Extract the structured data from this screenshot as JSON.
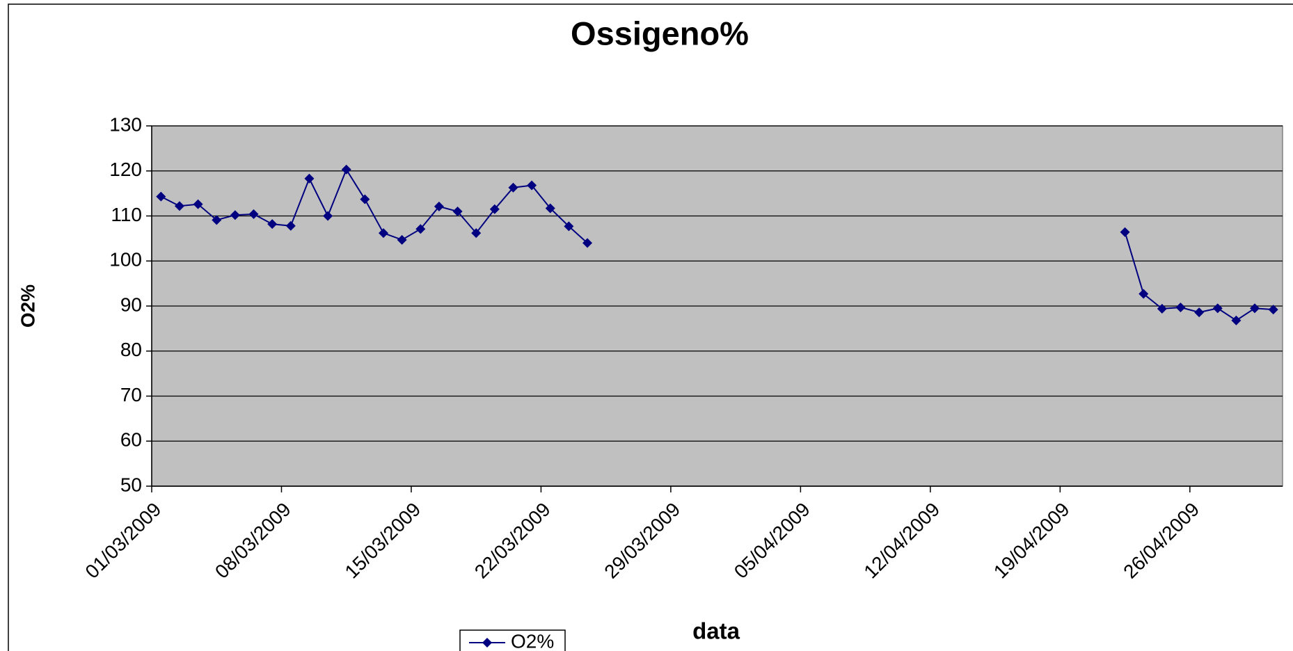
{
  "chart_data": {
    "type": "line",
    "title": "Ossigeno%",
    "x_label": "data",
    "y_label": "O2%",
    "x": [
      "01/03/2009",
      "02/03/2009",
      "03/03/2009",
      "04/03/2009",
      "05/03/2009",
      "06/03/2009",
      "07/03/2009",
      "08/03/2009",
      "09/03/2009",
      "10/03/2009",
      "11/03/2009",
      "12/03/2009",
      "13/03/2009",
      "14/03/2009",
      "15/03/2009",
      "16/03/2009",
      "17/03/2009",
      "18/03/2009",
      "19/03/2009",
      "20/03/2009",
      "21/03/2009",
      "22/03/2009",
      "23/03/2009",
      "24/03/2009",
      "25/03/2009",
      "22/04/2009",
      "23/04/2009",
      "24/04/2009",
      "25/04/2009",
      "26/04/2009",
      "27/04/2009",
      "28/04/2009",
      "29/04/2009",
      "30/04/2009"
    ],
    "series": [
      {
        "name": "O2%",
        "color": "#000080",
        "values": [
          114.3,
          112.2,
          112.6,
          109.1,
          110.2,
          110.4,
          108.2,
          107.8,
          118.3,
          110.0,
          120.3,
          113.7,
          106.2,
          104.7,
          107.1,
          112.1,
          111.0,
          106.2,
          111.5,
          116.3,
          116.8,
          111.7,
          107.7,
          104.0,
          null,
          106.4,
          92.7,
          89.4,
          89.7,
          88.6,
          89.5,
          86.8,
          89.5,
          89.2
        ]
      }
    ],
    "xlim": [
      "01/03/2009",
      "01/05/2009"
    ],
    "xticks": [
      "01/03/2009",
      "08/03/2009",
      "15/03/2009",
      "22/03/2009",
      "29/03/2009",
      "05/04/2009",
      "12/04/2009",
      "19/04/2009",
      "26/04/2009"
    ],
    "ylim": [
      50,
      130
    ],
    "yticks": [
      50,
      60,
      70,
      80,
      90,
      100,
      110,
      120,
      130
    ],
    "grid": true,
    "plot_background": "#c0c0c0",
    "legend": "bottom"
  }
}
